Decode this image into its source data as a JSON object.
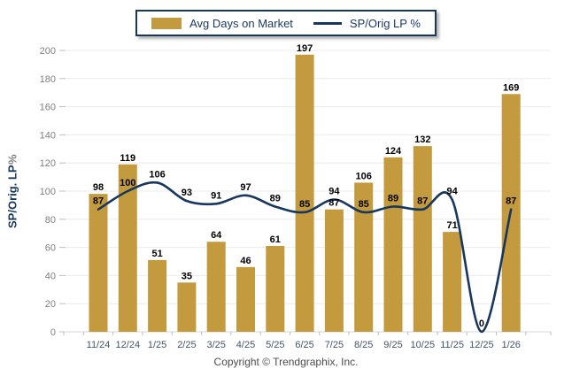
{
  "legend": {
    "bar_label": "Avg Days on Market",
    "line_label": "SP/Orig LP %"
  },
  "y_axis": {
    "title": "SP/Orig. LP",
    "title_suffix": " %"
  },
  "footer": {
    "copyright": "Copyright © Trendgraphix, Inc."
  },
  "colors": {
    "bar": "#C49A3E",
    "line": "#17375E",
    "legend_border": "#17375E",
    "legend_text": "#17375E",
    "grid": "#ECECEC",
    "axis_line": "#D6D6D6",
    "tick": "#BFBFBF",
    "y_tick_text": "#7F7F7F",
    "x_tick_text": "#44546A",
    "value_label": "#000000"
  },
  "chart_data": {
    "type": "bar",
    "title": "",
    "xlabel": "",
    "ylabel": "SP/Orig. LP %",
    "categories": [
      "11/24",
      "12/24",
      "1/25",
      "2/25",
      "3/25",
      "4/25",
      "5/25",
      "6/25",
      "7/25",
      "8/25",
      "9/25",
      "10/25",
      "11/25",
      "12/25",
      "1/26"
    ],
    "series": [
      {
        "name": "Avg Days on Market",
        "type": "bar",
        "values": [
          98,
          119,
          51,
          35,
          64,
          46,
          61,
          197,
          87,
          106,
          124,
          132,
          71,
          null,
          169
        ]
      },
      {
        "name": "SP/Orig LP %",
        "type": "line",
        "values": [
          87,
          100,
          106,
          93,
          91,
          97,
          89,
          85,
          94,
          85,
          89,
          87,
          94,
          0,
          87
        ]
      }
    ],
    "ylim": [
      0,
      200
    ],
    "y_ticks": [
      0,
      20,
      40,
      60,
      80,
      100,
      120,
      140,
      160,
      180,
      200
    ],
    "grid": true,
    "legend_position": "top"
  }
}
